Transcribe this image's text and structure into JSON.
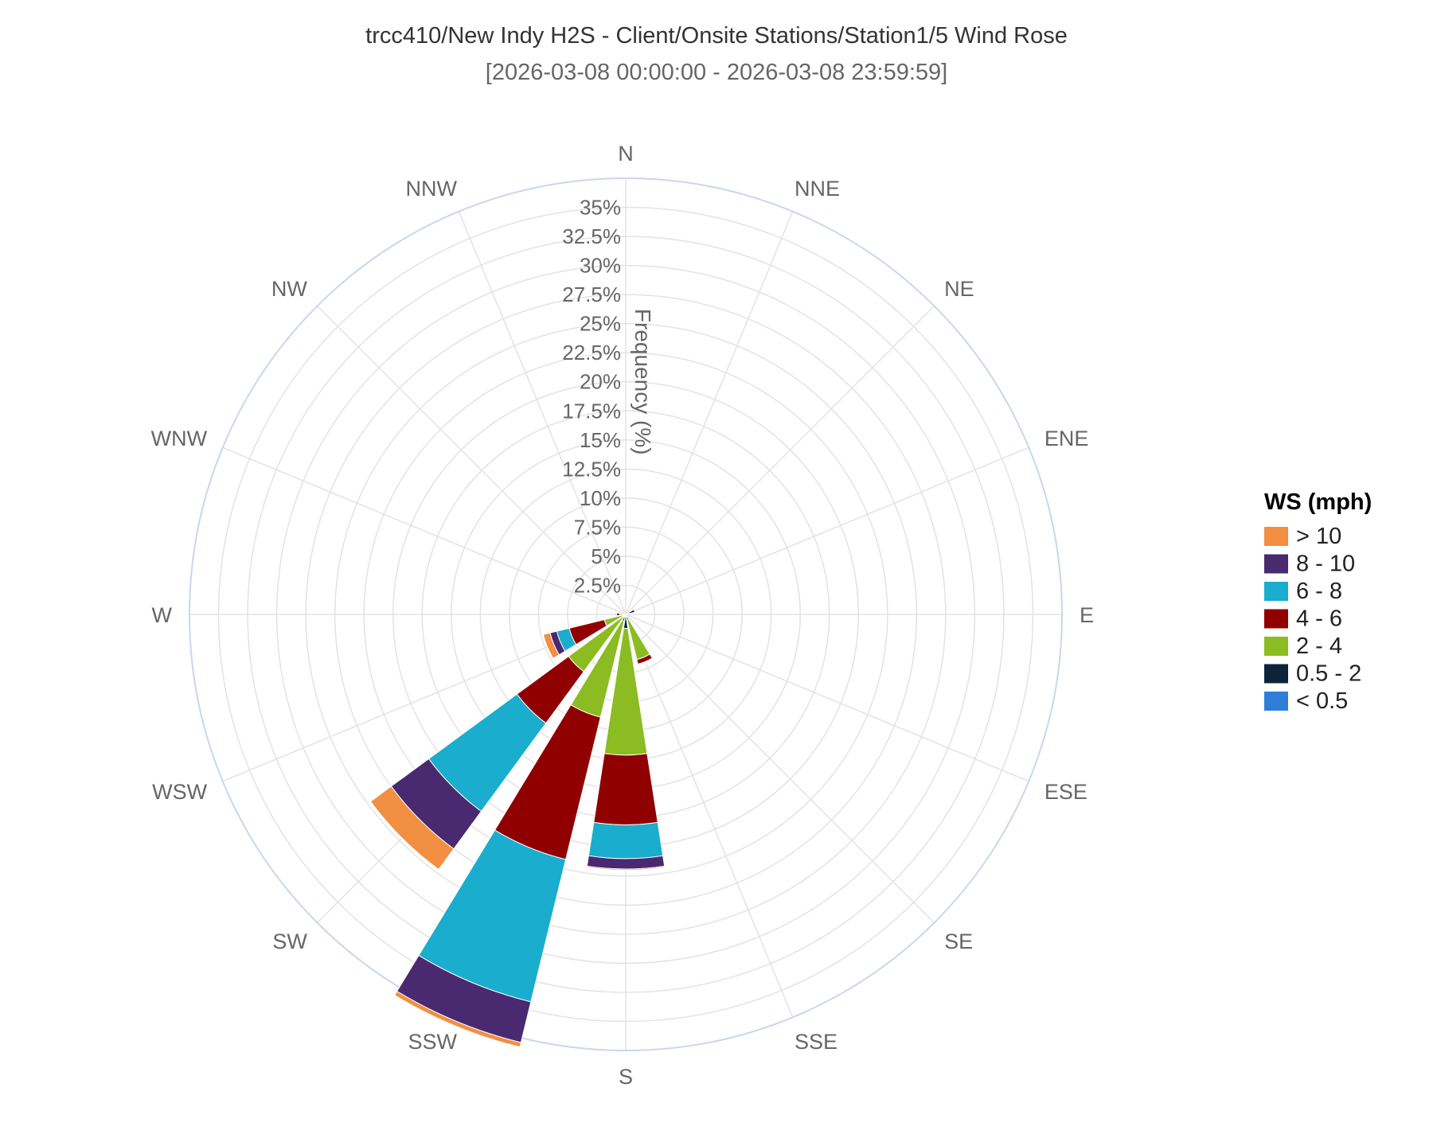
{
  "chart_data": {
    "type": "wind-rose",
    "title": "trcc410/New Indy H2S - Client/Onsite Stations/Station1/5 Wind Rose",
    "subtitle": "[2026-03-08 00:00:00 - 2026-03-08 23:59:59]",
    "radial_axis_title": "Frequency (%)",
    "radial_range": [
      0,
      37.5
    ],
    "radial_ticks": [
      2.5,
      5,
      7.5,
      10,
      12.5,
      15,
      17.5,
      20,
      22.5,
      25,
      27.5,
      30,
      32.5,
      35
    ],
    "radial_tick_labels": [
      "2.5%",
      "5%",
      "7.5%",
      "10%",
      "12.5%",
      "15%",
      "17.5%",
      "20%",
      "22.5%",
      "25%",
      "27.5%",
      "30%",
      "32.5%",
      "35%"
    ],
    "directions": [
      "N",
      "NNE",
      "NE",
      "ENE",
      "E",
      "ESE",
      "SE",
      "SSE",
      "S",
      "SSW",
      "SW",
      "WSW",
      "W",
      "WNW",
      "NW",
      "NNW"
    ],
    "legend": {
      "title": "WS (mph)",
      "placement": "right"
    },
    "series": [
      {
        "name": "< 0.5",
        "color": "#2f7ed8",
        "values": [
          0,
          0,
          0,
          0.3,
          0,
          0,
          0,
          0.1,
          0.1,
          0.1,
          0.1,
          0.1,
          0.1,
          0,
          0,
          0
        ]
      },
      {
        "name": "0.5 - 2",
        "color": "#0d233a",
        "values": [
          0,
          0,
          0,
          0.5,
          0,
          0,
          0,
          0.4,
          1.1,
          0.5,
          0.2,
          0.2,
          0.1,
          0.1,
          0,
          0
        ]
      },
      {
        "name": "2 - 4",
        "color": "#8bbc21",
        "values": [
          0,
          0,
          0,
          0,
          0,
          0,
          0,
          3.5,
          10.9,
          8.5,
          5.8,
          1.6,
          0.3,
          0,
          0,
          0
        ]
      },
      {
        "name": "4 - 6",
        "color": "#910000",
        "values": [
          0,
          0,
          0,
          0,
          0,
          0,
          0,
          0.4,
          6.0,
          12.6,
          5.5,
          3.1,
          0.3,
          0,
          0,
          0
        ]
      },
      {
        "name": "6 - 8",
        "color": "#1aadce",
        "values": [
          0,
          0,
          0,
          0,
          0,
          0,
          0,
          0,
          2.9,
          12.6,
          9.4,
          1.1,
          0.1,
          0,
          0,
          0
        ]
      },
      {
        "name": "8 - 10",
        "color": "#492970",
        "values": [
          0,
          0,
          0,
          0,
          0,
          0,
          0,
          0,
          0.9,
          3.6,
          4.0,
          0.6,
          0,
          0,
          0,
          0
        ]
      },
      {
        "name": "> 10",
        "color": "#f28f43",
        "values": [
          0,
          0,
          0,
          0,
          0,
          0,
          0,
          0,
          0.1,
          0.4,
          2.2,
          0.6,
          0,
          0,
          0,
          0
        ]
      }
    ]
  }
}
